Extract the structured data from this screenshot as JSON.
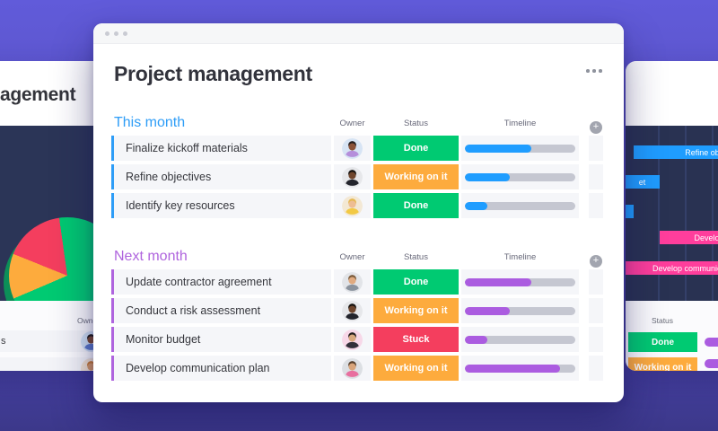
{
  "palette": {
    "group_blue": "#2e9df7",
    "group_purple": "#af64de",
    "blue": "#1f9dff",
    "purple": "#ab5ce0",
    "green": "#00ca72",
    "orange": "#fdab3d",
    "red": "#f43e5e",
    "pink": "#ff3e9c",
    "track": "#c5c7d1",
    "row_bg": "#f5f6f9",
    "header_text": "#676879",
    "gridline": "#34406a",
    "pie_shadow": "#0c8f58"
  },
  "window": {
    "title": "Project management",
    "more_menu": "more options"
  },
  "board": {
    "groups": [
      {
        "label": "This month",
        "color_key": "group_blue",
        "columns": {
          "owner": "Owner",
          "status": "Status",
          "timeline": "Timeline"
        },
        "add_label": "+",
        "rows": [
          {
            "task": "Finalize kickoff materials",
            "status": "Done",
            "status_color": "green",
            "progress": 60,
            "bar": "blue",
            "avatar": {
              "bg": "#d7e4f4",
              "skin": "#8a5238",
              "hair": "#241f20",
              "shirt": "#b58edb"
            }
          },
          {
            "task": "Refine objectives",
            "status": "Working on it",
            "status_color": "orange",
            "progress": 41,
            "bar": "blue",
            "avatar": {
              "bg": "#e6e7ea",
              "skin": "#6f452c",
              "hair": "#15120f",
              "shirt": "#23242c"
            }
          },
          {
            "task": "Identify key resources",
            "status": "Done",
            "status_color": "green",
            "progress": 20,
            "bar": "blue",
            "avatar": {
              "bg": "#f3e8d4",
              "skin": "#eebd93",
              "hair": "#e5b852",
              "shirt": "#f2c944"
            }
          }
        ]
      },
      {
        "label": "Next month",
        "color_key": "group_purple",
        "columns": {
          "owner": "Owner",
          "status": "Status",
          "timeline": "Timeline"
        },
        "add_label": "+",
        "rows": [
          {
            "task": "Update contractor agreement",
            "status": "Done",
            "status_color": "green",
            "progress": 60,
            "bar": "purple",
            "avatar": {
              "bg": "#e2e4e8",
              "skin": "#e0aa80",
              "hair": "#7a5a3a",
              "shirt": "#8b939e"
            }
          },
          {
            "task": "Conduct a risk assessment",
            "status": "Working on it",
            "status_color": "orange",
            "progress": 41,
            "bar": "purple",
            "avatar": {
              "bg": "#e6e7ea",
              "skin": "#6f452c",
              "hair": "#15120f",
              "shirt": "#23242c"
            }
          },
          {
            "task": "Monitor budget",
            "status": "Stuck",
            "status_color": "red",
            "progress": 20,
            "bar": "purple",
            "avatar": {
              "bg": "#f7d8e8",
              "skin": "#d8a87e",
              "hair": "#221c1c",
              "shirt": "#32303a"
            }
          },
          {
            "task": "Develop communication plan",
            "status": "Working on it",
            "status_color": "orange",
            "progress": 86,
            "bar": "purple",
            "avatar": {
              "bg": "#dcdfe3",
              "skin": "#d8a47a",
              "hair": "#563f2c",
              "shirt": "#e86f9f"
            }
          }
        ]
      }
    ]
  },
  "background": {
    "left_card": {
      "title_fragment": "agement",
      "pie": {
        "type": "pie",
        "slices": [
          {
            "name": "done",
            "value": 70.8,
            "color": "green"
          },
          {
            "name": "working",
            "value": 12.5,
            "color": "orange"
          },
          {
            "name": "stuck",
            "value": 16.7,
            "color": "red"
          }
        ]
      },
      "table": {
        "owner_header": "Owner",
        "row_fragment": "s",
        "rows": [
          {
            "avatar": {
              "bg": "#cfe0f2",
              "skin": "#7c4a30",
              "hair": "#1d1815",
              "shirt": "#5a79c9"
            }
          },
          {
            "avatar": {
              "bg": "#f0e3d2",
              "skin": "#d89a64",
              "hair": "#c97a2e",
              "shirt": "#e8913c"
            }
          }
        ]
      }
    },
    "right_card": {
      "gantt": {
        "bars": [
          {
            "label": "Refine obje",
            "color": "blue"
          },
          {
            "label": "et",
            "color": "blue"
          },
          {
            "label": "",
            "color": "blue"
          },
          {
            "label": "Develop",
            "color": "pink"
          },
          {
            "label": "Develop communication",
            "color": "pink"
          }
        ]
      },
      "table": {
        "status_header": "Status",
        "badges": [
          {
            "label": "Done",
            "status_color": "green"
          },
          {
            "label": "Working on it",
            "status_color": "orange"
          }
        ]
      }
    }
  }
}
